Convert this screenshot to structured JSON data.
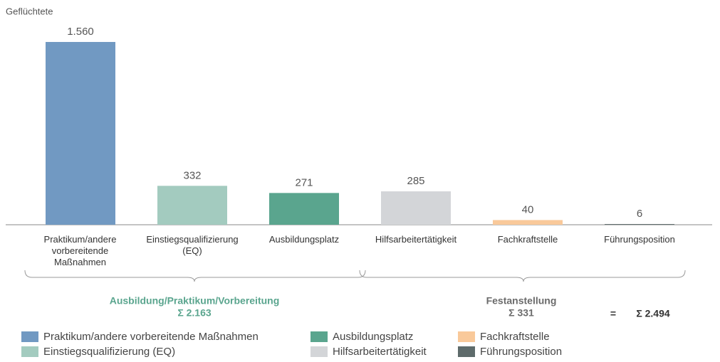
{
  "chart_data": {
    "type": "bar",
    "ylabel": "Geflüchtete",
    "categories": [
      "Praktikum/andere vorbereitende Maßnahmen",
      "Einstiegsqualifizierung (EQ)",
      "Ausbildungsplatz",
      "Hilfsarbeitertätigkeit",
      "Fachkraftstelle",
      "Führungsposition"
    ],
    "values": [
      1560,
      332,
      271,
      285,
      40,
      6
    ],
    "value_labels": [
      "1.560",
      "332",
      "271",
      "285",
      "40",
      "6"
    ],
    "colors": [
      "#7199c2",
      "#a3cbbf",
      "#5aa58e",
      "#d3d5d8",
      "#f9c99a",
      "#5e6b6b"
    ],
    "groups": [
      {
        "name": "Ausbildung/Praktikum/Vorbereitung",
        "total": "Σ 2.163",
        "color": "#5aa58e"
      },
      {
        "name": "Festanstellung",
        "total": "Σ 331",
        "color": "#6b6b6b"
      }
    ],
    "grand_total_sign": "=",
    "grand_total": "Σ 2.494"
  }
}
